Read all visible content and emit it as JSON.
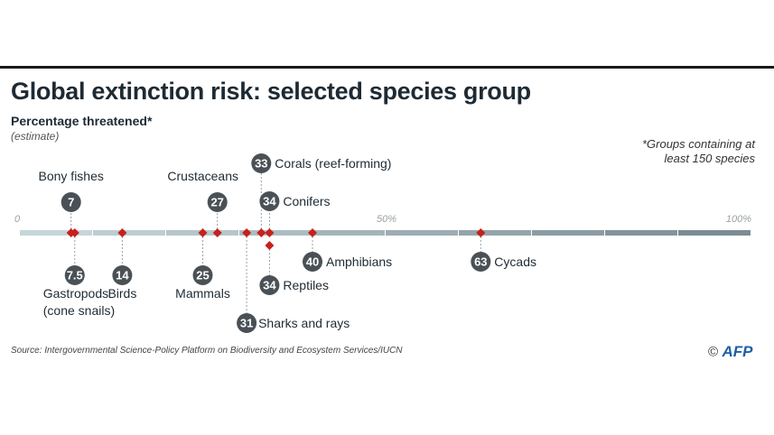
{
  "header": {
    "title": "Global extinction risk: selected species group",
    "subtitle": "Percentage threatened*",
    "subnote": "(estimate)",
    "footnote": "*Groups containing at least 150 species"
  },
  "footer": {
    "source": "Source: Intergovernmental Science-Policy Platform on Biodiversity and Ecosystem Services/IUCN",
    "copyright": "©",
    "agency": "AFP"
  },
  "colors": {
    "marker": "#c8201e",
    "bubble": "#4a5156",
    "track_light": "#c5d6da",
    "track_dark": "#7b8c93"
  },
  "chart_data": {
    "type": "scatter",
    "title": "Global extinction risk: selected species group",
    "subtitle": "Percentage threatened*",
    "xlim": [
      0,
      100
    ],
    "ticks": [
      {
        "value": 0,
        "label": "0"
      },
      {
        "value": 50,
        "label": "50%"
      },
      {
        "value": 100,
        "label": "100%"
      }
    ],
    "points": [
      {
        "name": "Bony fishes",
        "value": 7,
        "label": "7"
      },
      {
        "name": "Gastropods (cone snails)",
        "value": 7.5,
        "label": "7.5"
      },
      {
        "name": "Birds",
        "value": 14,
        "label": "14"
      },
      {
        "name": "Mammals",
        "value": 25,
        "label": "25"
      },
      {
        "name": "Crustaceans",
        "value": 27,
        "label": "27"
      },
      {
        "name": "Sharks and rays",
        "value": 31,
        "label": "31"
      },
      {
        "name": "Corals (reef-forming)",
        "value": 33,
        "label": "33"
      },
      {
        "name": "Conifers",
        "value": 34,
        "label": "34"
      },
      {
        "name": "Reptiles",
        "value": 34,
        "label": "34"
      },
      {
        "name": "Amphibians",
        "value": 40,
        "label": "40"
      },
      {
        "name": "Cycads",
        "value": 63,
        "label": "63"
      }
    ],
    "annotation_lines": [
      {
        "series": "Gastropods (cone snails)",
        "line1": "Gastropods",
        "line2": "(cone snails)"
      }
    ]
  }
}
